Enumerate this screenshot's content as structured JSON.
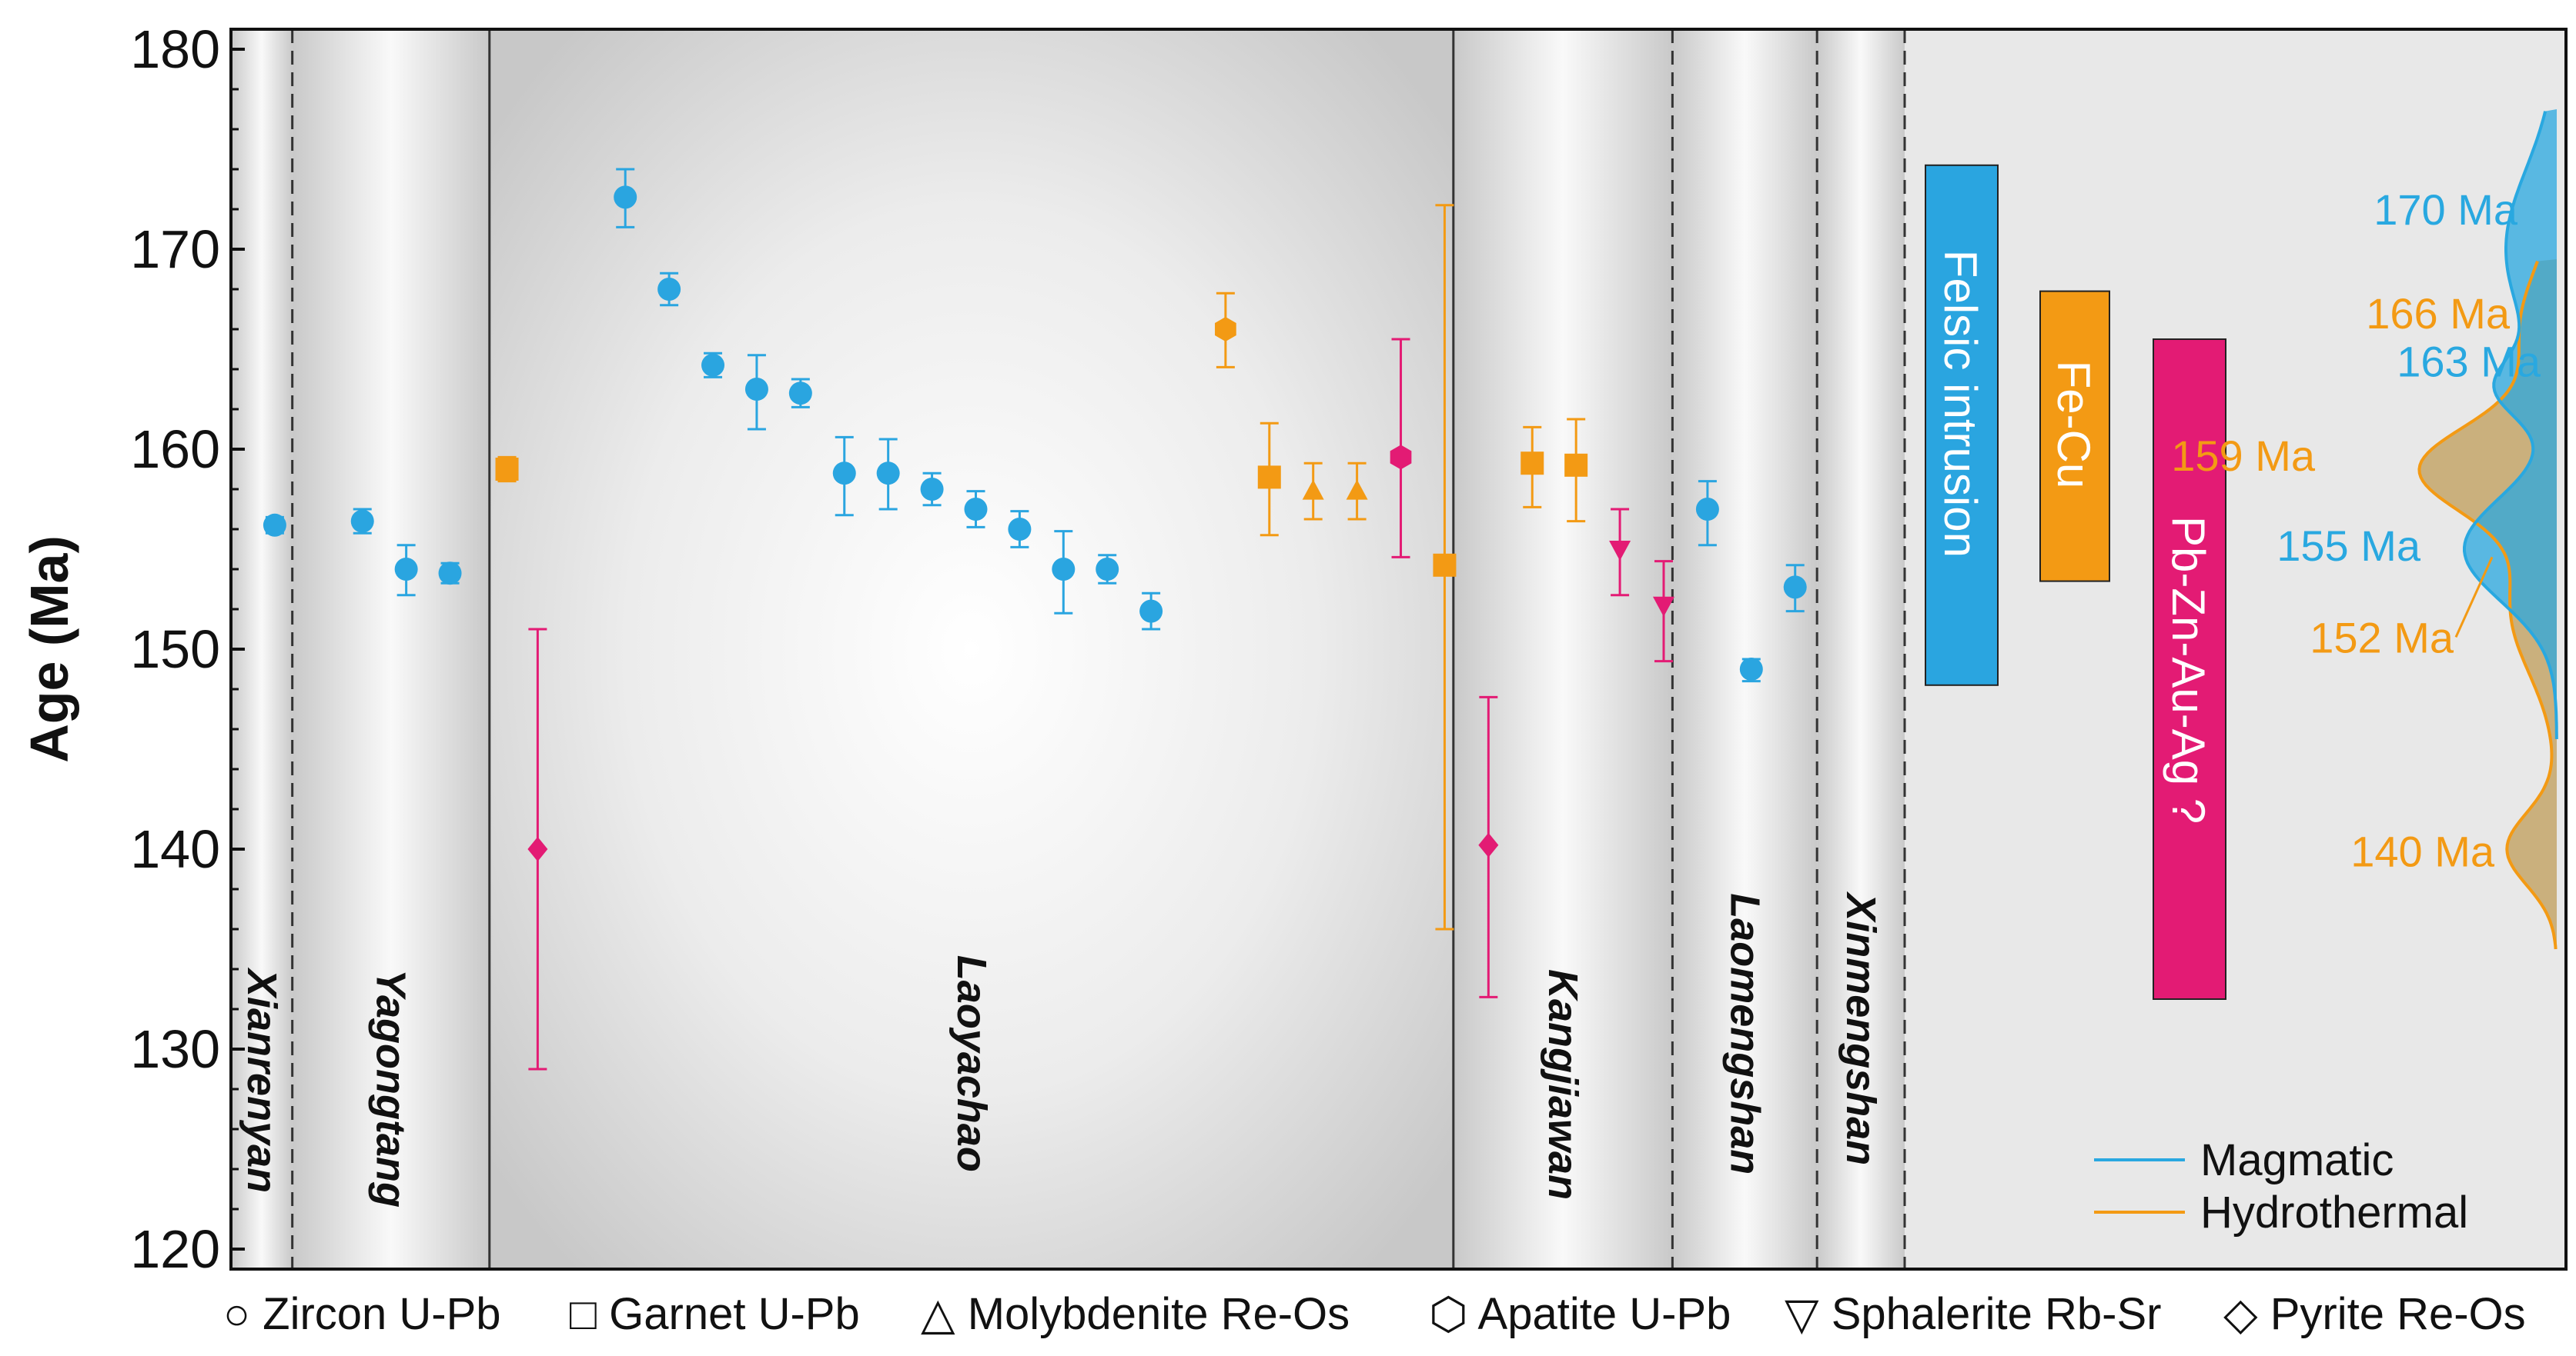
{
  "chart_data": {
    "type": "scatter",
    "ylabel": "Age (Ma)",
    "ylim": [
      119,
      181
    ],
    "yticks": [
      120,
      130,
      140,
      150,
      160,
      170,
      180
    ],
    "colors": {
      "zircon": "#2aa5e0",
      "orange": "#f39a14",
      "pink": "#e31b74",
      "magmatic": "#29a8e0",
      "hydrothermal": "#f39a14",
      "hydro_fill": "#c4a66a"
    },
    "deposits": [
      {
        "name": "Xianrenyan",
        "x_from": 0,
        "x_to": 1.4
      },
      {
        "name": "Yagongtang",
        "x_from": 1.4,
        "x_to": 5.9
      },
      {
        "name": "Laoyachao",
        "x_from": 5.9,
        "x_to": 27.9
      },
      {
        "name": "Kangjiawan",
        "x_from": 27.9,
        "x_to": 32.9
      },
      {
        "name": "Laomengshan",
        "x_from": 32.9,
        "x_to": 36.2
      },
      {
        "name": "Xinmengshan",
        "x_from": 36.2,
        "x_to": 38.2
      }
    ],
    "boundary_styles": [
      "dashed",
      "solid",
      "solid",
      "dashed",
      "dashed",
      "dashed"
    ],
    "boundary_x": [
      1.4,
      5.9,
      27.9,
      32.9,
      36.2,
      38.2
    ],
    "points": [
      {
        "x": 1,
        "y": 156.2,
        "err_lo": 0.4,
        "err_hi": 0.4,
        "method": "zircon"
      },
      {
        "x": 3,
        "y": 156.4,
        "err_lo": 0.6,
        "err_hi": 0.6,
        "method": "zircon"
      },
      {
        "x": 4,
        "y": 154.0,
        "err_lo": 1.3,
        "err_hi": 1.2,
        "method": "zircon"
      },
      {
        "x": 5,
        "y": 153.8,
        "err_lo": 0.5,
        "err_hi": 0.5,
        "method": "zircon"
      },
      {
        "x": 6.3,
        "y": 159.0,
        "err_lo": 0.6,
        "err_hi": 0.6,
        "method": "garnet"
      },
      {
        "x": 7,
        "y": 140.0,
        "err_lo": 11.0,
        "err_hi": 11.0,
        "method": "pyrite"
      },
      {
        "x": 9,
        "y": 172.6,
        "err_lo": 1.5,
        "err_hi": 1.4,
        "method": "zircon"
      },
      {
        "x": 10,
        "y": 168.0,
        "err_lo": 0.8,
        "err_hi": 0.8,
        "method": "zircon"
      },
      {
        "x": 11,
        "y": 164.2,
        "err_lo": 0.6,
        "err_hi": 0.6,
        "method": "zircon"
      },
      {
        "x": 12,
        "y": 163.0,
        "err_lo": 2.0,
        "err_hi": 1.7,
        "method": "zircon"
      },
      {
        "x": 13,
        "y": 162.8,
        "err_lo": 0.7,
        "err_hi": 0.7,
        "method": "zircon"
      },
      {
        "x": 14,
        "y": 158.8,
        "err_lo": 2.1,
        "err_hi": 1.8,
        "method": "zircon"
      },
      {
        "x": 15,
        "y": 158.8,
        "err_lo": 1.8,
        "err_hi": 1.7,
        "method": "zircon"
      },
      {
        "x": 16,
        "y": 158.0,
        "err_lo": 0.8,
        "err_hi": 0.8,
        "method": "zircon"
      },
      {
        "x": 17,
        "y": 157.0,
        "err_lo": 0.9,
        "err_hi": 0.9,
        "method": "zircon"
      },
      {
        "x": 18,
        "y": 156.0,
        "err_lo": 0.9,
        "err_hi": 0.9,
        "method": "zircon"
      },
      {
        "x": 19,
        "y": 154.0,
        "err_lo": 2.2,
        "err_hi": 1.9,
        "method": "zircon"
      },
      {
        "x": 20,
        "y": 154.0,
        "err_lo": 0.7,
        "err_hi": 0.7,
        "method": "zircon"
      },
      {
        "x": 21,
        "y": 151.9,
        "err_lo": 0.9,
        "err_hi": 0.9,
        "method": "zircon"
      },
      {
        "x": 22.7,
        "y": 166.0,
        "err_lo": 1.9,
        "err_hi": 1.8,
        "method": "apatite"
      },
      {
        "x": 23.7,
        "y": 158.6,
        "err_lo": 2.9,
        "err_hi": 2.7,
        "method": "garnet"
      },
      {
        "x": 24.7,
        "y": 157.9,
        "err_lo": 1.4,
        "err_hi": 1.4,
        "method": "molybdenite"
      },
      {
        "x": 25.7,
        "y": 157.9,
        "err_lo": 1.4,
        "err_hi": 1.4,
        "method": "molybdenite"
      },
      {
        "x": 26.7,
        "y": 159.6,
        "err_lo": 5.0,
        "err_hi": 5.9,
        "method": "apatite_pink"
      },
      {
        "x": 27.7,
        "y": 154.2,
        "err_lo": 18.2,
        "err_hi": 18.0,
        "method": "garnet"
      },
      {
        "x": 28.7,
        "y": 140.2,
        "err_lo": 7.6,
        "err_hi": 7.4,
        "method": "pyrite"
      },
      {
        "x": 29.7,
        "y": 159.3,
        "err_lo": 2.2,
        "err_hi": 1.8,
        "method": "garnet"
      },
      {
        "x": 30.7,
        "y": 159.2,
        "err_lo": 2.8,
        "err_hi": 2.3,
        "method": "garnet"
      },
      {
        "x": 31.7,
        "y": 155.0,
        "err_lo": 2.3,
        "err_hi": 2.0,
        "method": "sphalerite"
      },
      {
        "x": 32.7,
        "y": 152.2,
        "err_lo": 2.8,
        "err_hi": 2.2,
        "method": "sphalerite"
      },
      {
        "x": 33.7,
        "y": 157.0,
        "err_lo": 1.8,
        "err_hi": 1.4,
        "method": "zircon"
      },
      {
        "x": 34.7,
        "y": 149.0,
        "err_lo": 0.6,
        "err_hi": 0.5,
        "method": "zircon"
      },
      {
        "x": 35.7,
        "y": 153.1,
        "err_lo": 1.2,
        "err_hi": 1.1,
        "method": "zircon"
      }
    ],
    "mineralization_bars": [
      {
        "label": "Felsic intrusion",
        "y_from": 148.2,
        "y_to": 174.2,
        "color": "#2aa5e0"
      },
      {
        "label": "Fe-Cu",
        "y_from": 153.4,
        "y_to": 167.9,
        "color": "#f39a14"
      },
      {
        "label": "Pb-Zn-Au-Ag ?",
        "y_from": 132.5,
        "y_to": 165.5,
        "color": "#e31b74"
      }
    ],
    "kde_peaks": {
      "magmatic": [
        170,
        163,
        155
      ],
      "hydrothermal": [
        166,
        159,
        152,
        140
      ]
    },
    "peak_labels": [
      {
        "text": "170 Ma",
        "series": "magmatic",
        "y": 172
      },
      {
        "text": "166 Ma",
        "series": "hydrothermal",
        "y": 166.8
      },
      {
        "text": "163 Ma",
        "series": "magmatic",
        "y": 164.4
      },
      {
        "text": "159 Ma",
        "series": "hydrothermal",
        "y": 159.7
      },
      {
        "text": "155 Ma",
        "series": "magmatic",
        "y": 155.2
      },
      {
        "text": "152 Ma",
        "series": "hydrothermal",
        "y": 150.6
      },
      {
        "text": "140 Ma",
        "series": "hydrothermal",
        "y": 139.9
      }
    ],
    "legend": [
      {
        "label": "Magmatic",
        "color": "#29a8e0"
      },
      {
        "label": "Hydrothermal",
        "color": "#f39a14"
      }
    ],
    "legend_position": "bottom-right",
    "method_legend": [
      {
        "symbol": "○",
        "label": "Zircon U-Pb"
      },
      {
        "symbol": "□",
        "label": "Garnet U-Pb"
      },
      {
        "symbol": "△",
        "label": "Molybdenite Re-Os"
      },
      {
        "symbol": "⬡",
        "label": "Apatite U-Pb"
      },
      {
        "symbol": "▽",
        "label": "Sphalerite Rb-Sr"
      },
      {
        "symbol": "◇",
        "label": "Pyrite Re-Os"
      }
    ]
  }
}
